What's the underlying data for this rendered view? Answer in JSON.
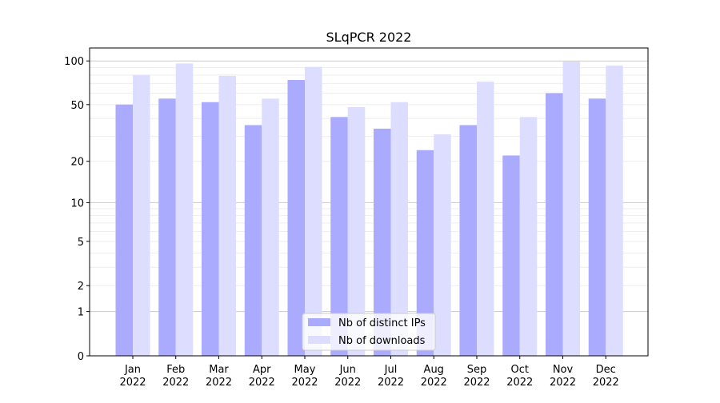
{
  "chart_data": {
    "type": "bar",
    "title": "SLqPCR 2022",
    "xlabel": "",
    "ylabel": "",
    "yscale": "log(1+y)",
    "ylim": [
      0,
      115
    ],
    "yticks": [
      0,
      1,
      2,
      5,
      10,
      20,
      50,
      100
    ],
    "ytick_labels": [
      "0",
      "1",
      "2",
      "5",
      "10",
      "20",
      "50",
      "100"
    ],
    "grid": true,
    "legend_position": "bottom-center",
    "categories": [
      "Jan\n2022",
      "Feb\n2022",
      "Mar\n2022",
      "Apr\n2022",
      "May\n2022",
      "Jun\n2022",
      "Jul\n2022",
      "Aug\n2022",
      "Sep\n2022",
      "Oct\n2022",
      "Nov\n2022",
      "Dec\n2022"
    ],
    "series": [
      {
        "name": "Nb of distinct IPs",
        "color": "#aaaaff",
        "values": [
          50,
          55,
          52,
          36,
          74,
          41,
          34,
          24,
          36,
          22,
          60,
          55
        ]
      },
      {
        "name": "Nb of downloads",
        "color": "#ddddff",
        "values": [
          80,
          96,
          79,
          55,
          91,
          48,
          52,
          31,
          72,
          41,
          99,
          93
        ]
      }
    ]
  }
}
